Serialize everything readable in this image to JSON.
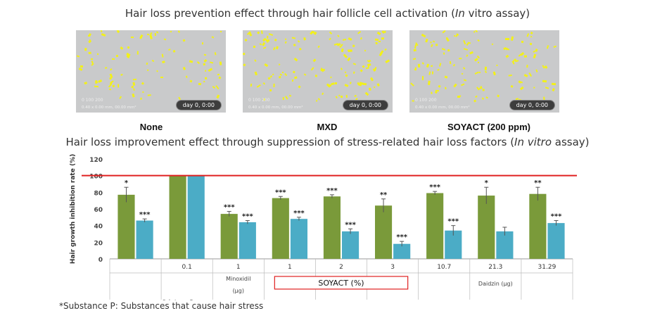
{
  "header": {
    "title1_pre": "Hair loss prevention effect through hair follicle cell activation (",
    "title1_em": "In",
    "title1_post": " vitro assay)",
    "title2_pre": "Hair loss improvement effect through suppression of stress-related hair loss factors  (",
    "title2_em": "In vitro",
    "title2_post": " assay)"
  },
  "images": [
    {
      "label": "None",
      "scale": "0   100  200",
      "info": "0.40 x 0.00 mm, 00.00 mm²",
      "time": "day 0, 0:00"
    },
    {
      "label": "MXD",
      "scale": "0   100  200",
      "info": "0.40 x 0.00 mm, 00.00 mm²",
      "time": "day 0, 0:00"
    },
    {
      "label": "SOYACT (200 ppm)",
      "scale": "0   100  200",
      "info": "0.40 x 0.00 mm, 00.00 mm²",
      "time": "day 0, 0:00"
    }
  ],
  "footnote": "*Substance P: Substances that cause hair stress",
  "chart_data": {
    "type": "bar",
    "ylabel": "Hair growth inhibition rate (%)",
    "ylim": [
      0,
      120
    ],
    "yticks": [
      0,
      20,
      40,
      60,
      80,
      100,
      120
    ],
    "reference_line": 100,
    "reference_color": "#e02020",
    "categories": [
      "",
      "0.1",
      "1",
      "1",
      "2",
      "3",
      "10.7",
      "21.3",
      "31.29"
    ],
    "group_labels": [
      {
        "text": "Substance P",
        "partial": true
      },
      {
        "text": "Minoxidil",
        "sub": "(μg)"
      },
      {
        "text": "SOYACT (%)",
        "boxed": true
      },
      {
        "text": "Daidzin (μg)"
      }
    ],
    "series": [
      {
        "color": "#7a9a3a",
        "values": [
          77,
          100,
          54,
          73,
          75,
          64,
          79,
          76,
          78
        ],
        "errors": [
          9,
          0,
          3,
          2,
          2,
          8,
          2,
          10,
          8
        ],
        "sig": [
          "*",
          "",
          "***",
          "***",
          "***",
          "**",
          "***",
          "*",
          "**"
        ]
      },
      {
        "color": "#4bacc6",
        "values": [
          46,
          100,
          44,
          48,
          33,
          18,
          34,
          33,
          43
        ],
        "errors": [
          2,
          0,
          2,
          2,
          3,
          3,
          6,
          5,
          3
        ],
        "sig": [
          "***",
          "",
          "***",
          "***",
          "***",
          "***",
          "***",
          "",
          "***"
        ]
      }
    ]
  }
}
